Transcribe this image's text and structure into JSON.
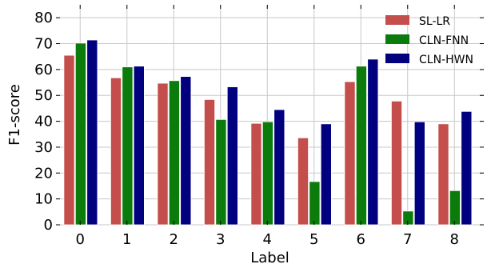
{
  "chart_data": {
    "type": "bar",
    "title": "",
    "xlabel": "Label",
    "ylabel": "F1-score",
    "categories": [
      "0",
      "1",
      "2",
      "3",
      "4",
      "5",
      "6",
      "7",
      "8"
    ],
    "ylim": [
      0,
      85
    ],
    "yticks": [
      0,
      10,
      20,
      30,
      40,
      50,
      60,
      70,
      80
    ],
    "grid": true,
    "legend_position": "top-right",
    "series": [
      {
        "name": "SL-LR",
        "color": "#c44e4b",
        "values": [
          65.5,
          56.8,
          54.7,
          48.4,
          39.2,
          33.6,
          55.3,
          47.8,
          39.0
        ]
      },
      {
        "name": "CLN-FNN",
        "color": "#0b7c0b",
        "values": [
          70.2,
          61.0,
          55.7,
          40.7,
          39.8,
          16.7,
          61.3,
          5.3,
          13.2
        ]
      },
      {
        "name": "CLN-HWN",
        "color": "#01007f",
        "values": [
          71.4,
          61.3,
          57.3,
          53.3,
          44.5,
          39.0,
          64.0,
          39.8,
          43.8
        ]
      }
    ]
  }
}
